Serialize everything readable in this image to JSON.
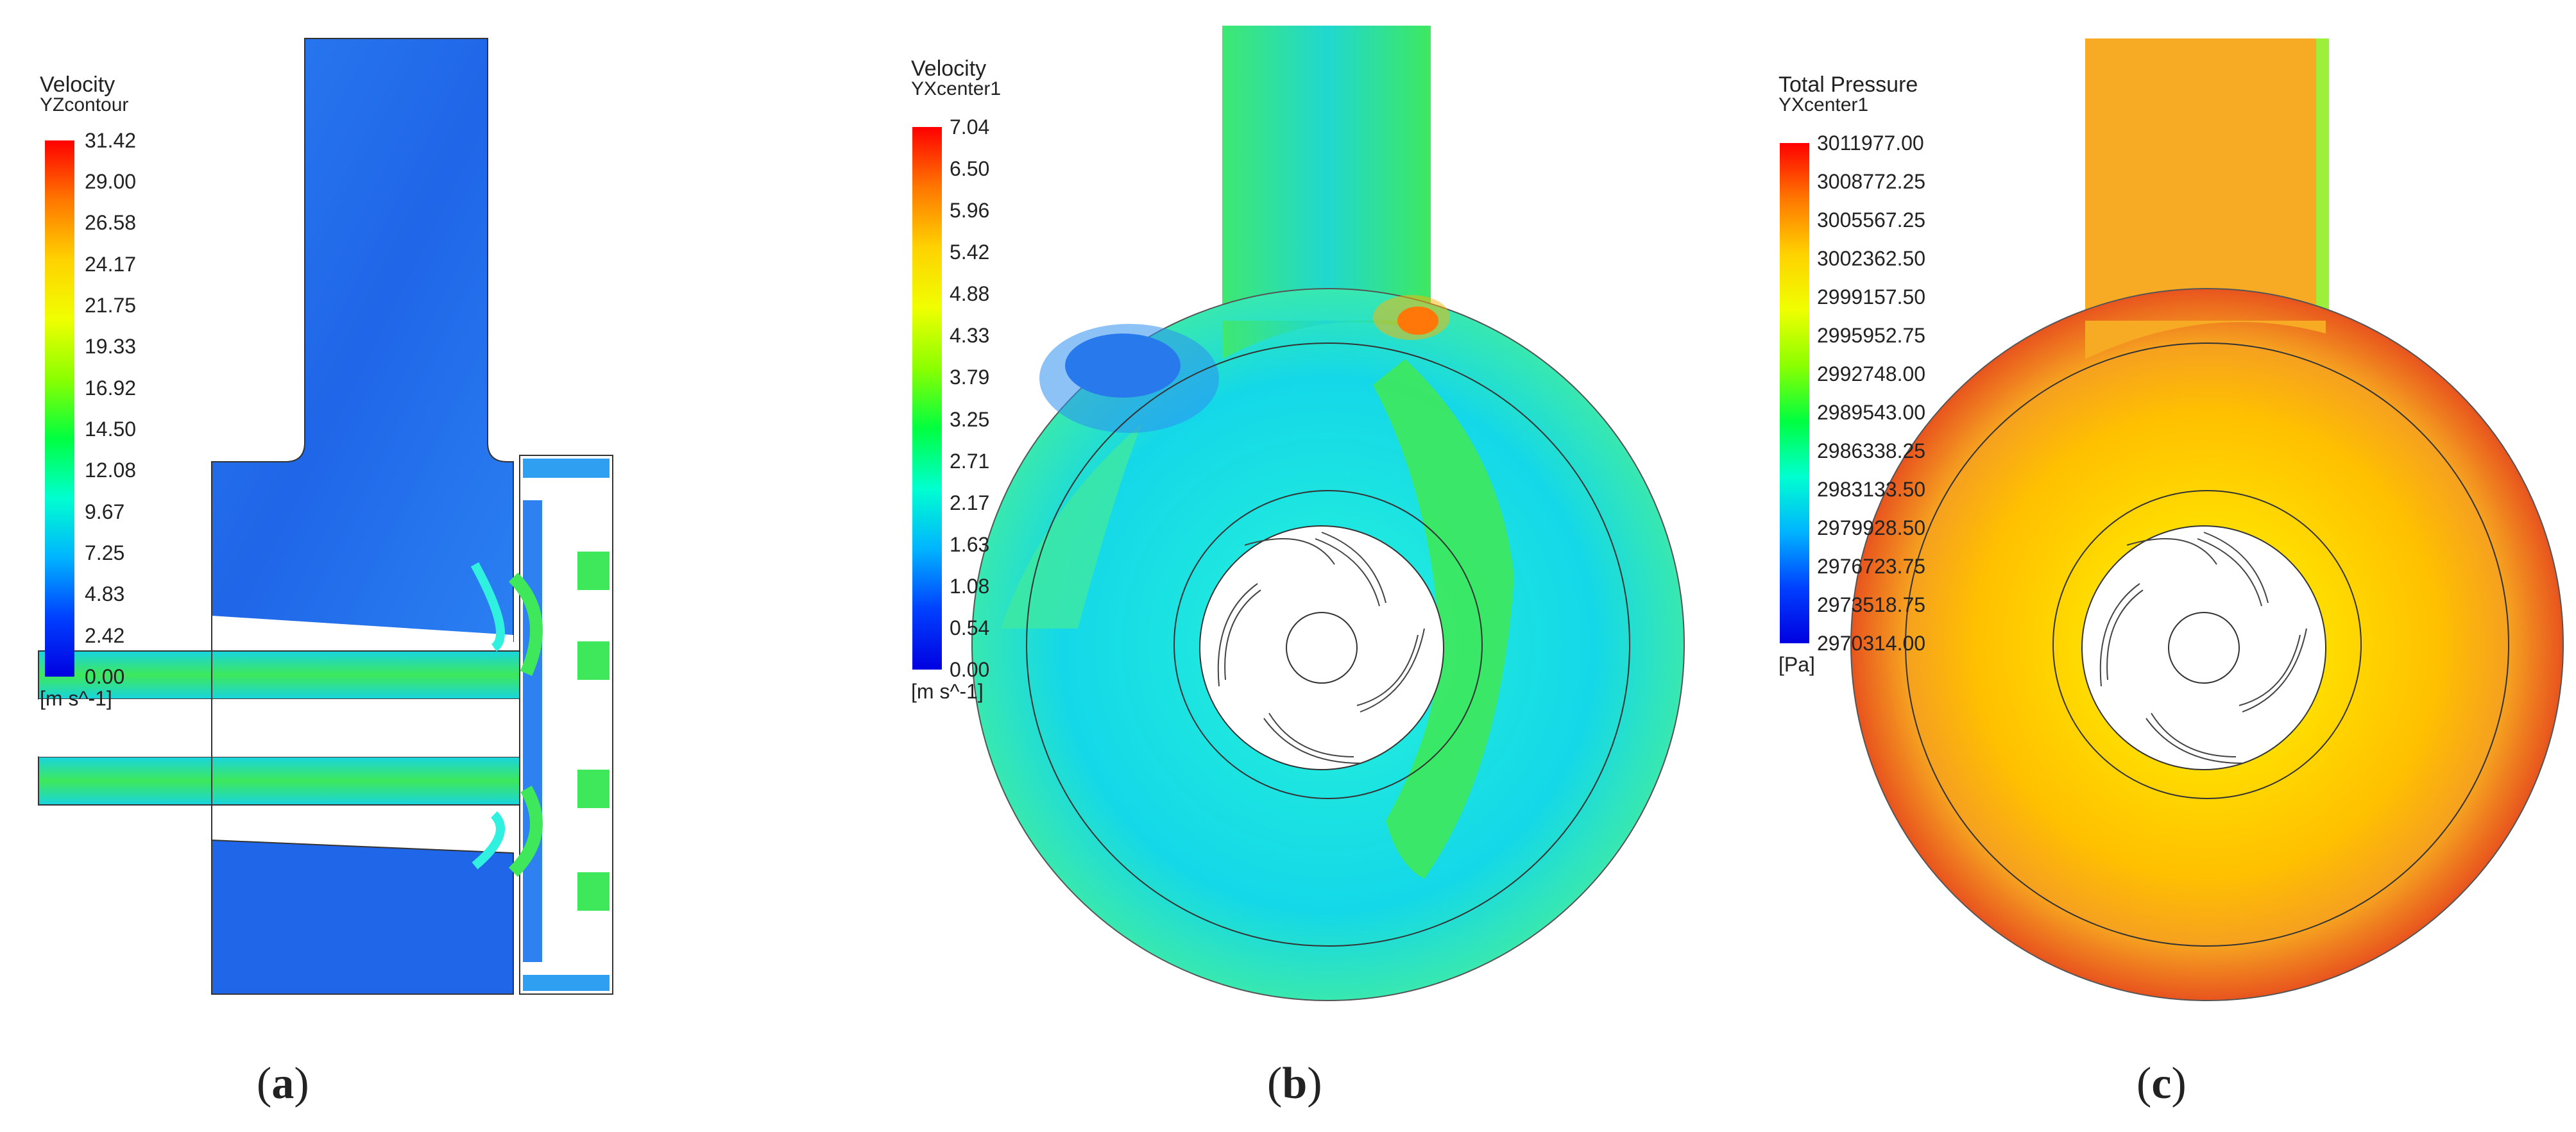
{
  "panels": [
    {
      "caption_open": "(",
      "caption_letter": "a",
      "caption_close": ")",
      "legend": {
        "title": "Velocity",
        "subtitle": "YZcontour",
        "unit": "[m s^-1]",
        "ticks": [
          "31.42",
          "29.00",
          "26.58",
          "24.17",
          "21.75",
          "19.33",
          "16.92",
          "14.50",
          "12.08",
          "9.67",
          "7.25",
          "4.83",
          "2.42",
          "0.00"
        ]
      }
    },
    {
      "caption_open": "(",
      "caption_letter": "b",
      "caption_close": ")",
      "legend": {
        "title": "Velocity",
        "subtitle": "YXcenter1",
        "unit": "[m s^-1]",
        "ticks": [
          "7.04",
          "6.50",
          "5.96",
          "5.42",
          "4.88",
          "4.33",
          "3.79",
          "3.25",
          "2.71",
          "2.17",
          "1.63",
          "1.08",
          "0.54",
          "0.00"
        ]
      }
    },
    {
      "caption_open": "(",
      "caption_letter": "c",
      "caption_close": ")",
      "legend": {
        "title": "Total Pressure",
        "subtitle": "YXcenter1",
        "unit": "[Pa]",
        "ticks": [
          "3011977.00",
          "3008772.25",
          "3005567.25",
          "3002362.50",
          "2999157.50",
          "2995952.75",
          "2992748.00",
          "2989543.00",
          "2986338.25",
          "2983133.50",
          "2979928.50",
          "2976723.75",
          "2973518.75",
          "2970314.00"
        ]
      }
    }
  ],
  "colors": {
    "colormap": [
      "#ff0000",
      "#ff7700",
      "#ffd200",
      "#f0ff00",
      "#8cff00",
      "#00ff40",
      "#00ffd0",
      "#00b4ff",
      "#0040ff",
      "#0000e0"
    ],
    "deep_blue": "#1f5fe6",
    "medium_blue": "#2f80f0",
    "cyan_field": "#00e0e8",
    "green_field": "#3ee85a",
    "orange_field": "#f5a623",
    "red_field": "#e84a1e",
    "yellow_field": "#ffe400",
    "outline": "#555555"
  }
}
